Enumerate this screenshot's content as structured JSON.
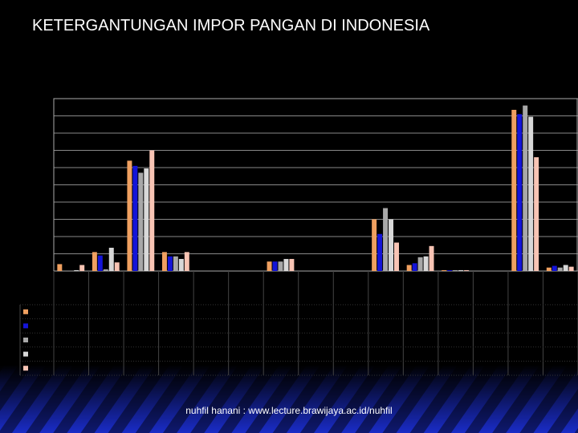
{
  "title": "KETERGANTUNGAN IMPOR PANGAN DI INDONESIA",
  "footer": "nuhfil hanani : www.lecture.brawijaya.ac.id/nuhfil",
  "chart_data": {
    "type": "bar",
    "categories": [
      null,
      null,
      null,
      null,
      null,
      null,
      null,
      null,
      null,
      null,
      null,
      null,
      null,
      null,
      null
    ],
    "series": [
      {
        "color": "#f0a060",
        "values": [
          0.4,
          1.1,
          6.4,
          1.1,
          0,
          0,
          0.55,
          0,
          0,
          3.0,
          0.35,
          0.05,
          0,
          9.35,
          0.2
        ]
      },
      {
        "color": "#1414d8",
        "values": [
          0,
          0.9,
          6.1,
          0.85,
          0,
          0,
          0.55,
          0,
          0,
          2.15,
          0.45,
          0.05,
          0,
          9.1,
          0.3
        ]
      },
      {
        "color": "#a8a8a8",
        "values": [
          0,
          0.1,
          5.7,
          0.85,
          0,
          0,
          0.55,
          0,
          0,
          3.65,
          0.8,
          0.05,
          0,
          9.6,
          0.2
        ]
      },
      {
        "color": "#d8d8d8",
        "values": [
          0.05,
          1.35,
          5.95,
          0.7,
          0,
          0,
          0.7,
          0,
          0,
          3.0,
          0.85,
          0.05,
          0,
          8.95,
          0.35
        ]
      },
      {
        "color": "#f8c4b4",
        "values": [
          0.35,
          0.5,
          7.0,
          1.1,
          0,
          0,
          0.7,
          0,
          0,
          1.65,
          1.45,
          0.05,
          0,
          6.6,
          0.25
        ]
      }
    ],
    "ylim": [
      0,
      10
    ],
    "yticks": [
      0,
      1,
      2,
      3,
      4,
      5,
      6,
      7,
      8,
      9,
      10
    ],
    "grid": true
  }
}
